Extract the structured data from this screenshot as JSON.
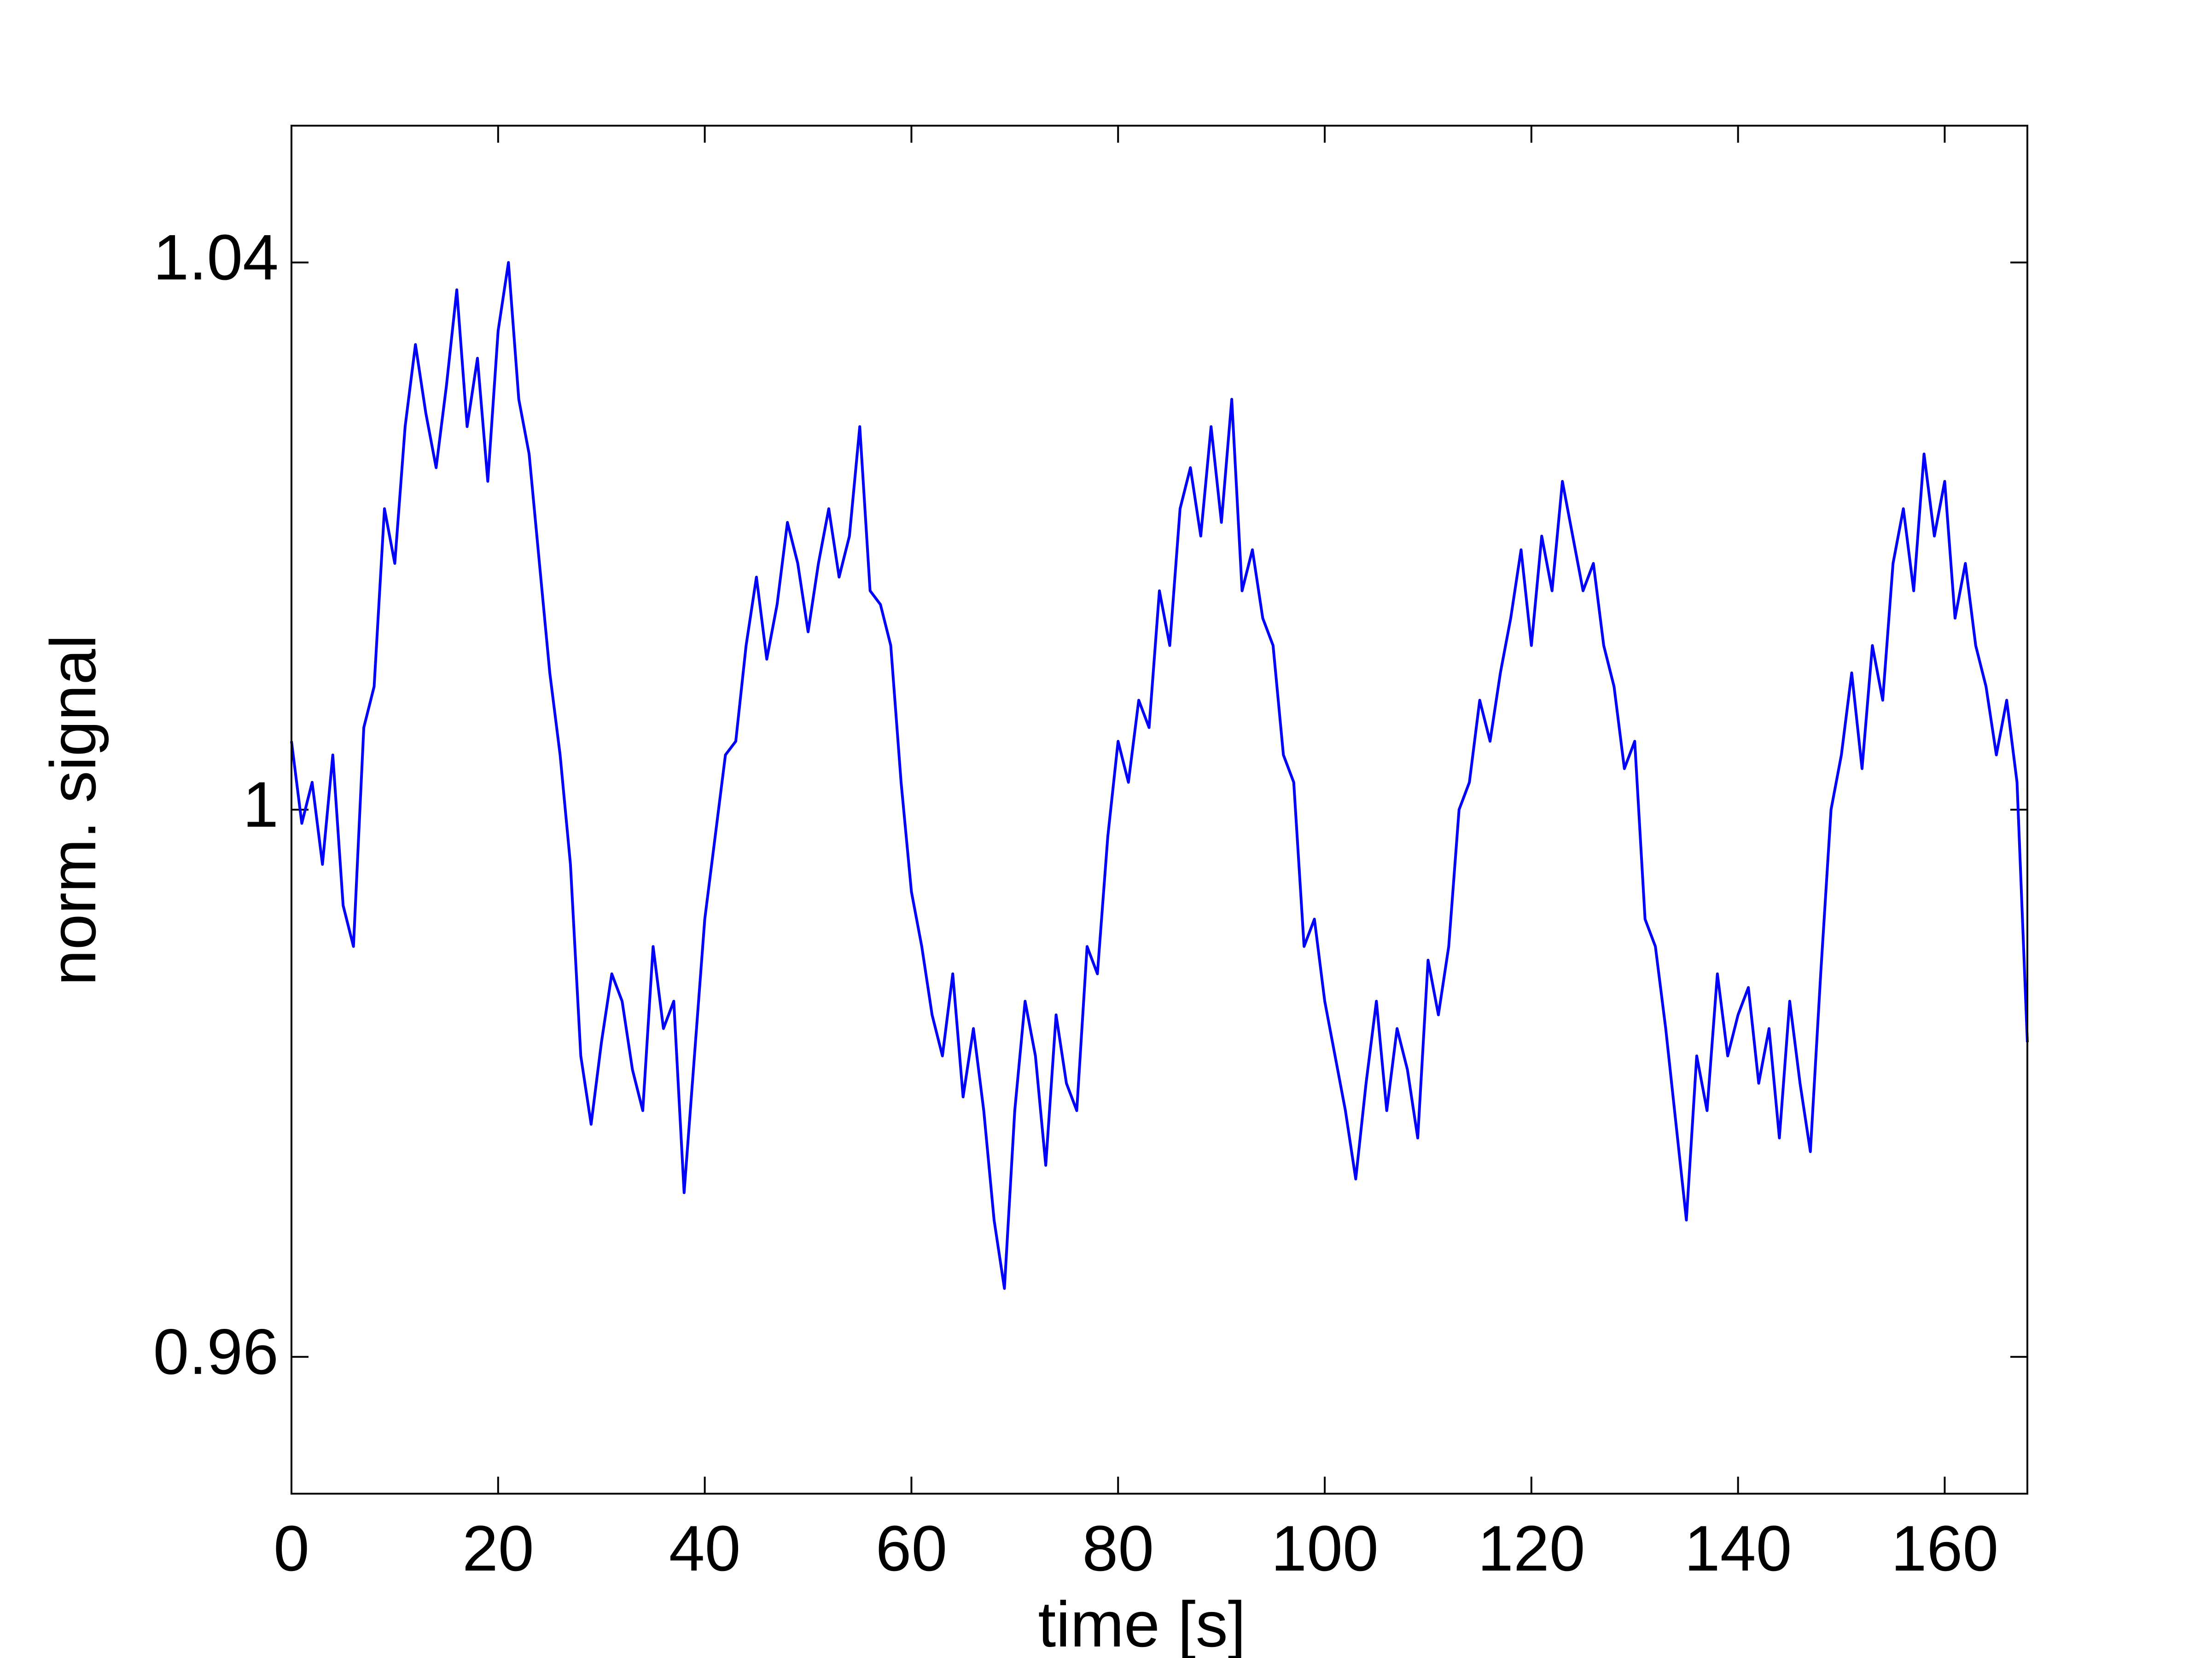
{
  "chart_data": {
    "type": "line",
    "xlabel": "time [s]",
    "ylabel": "norm. signal",
    "xlim": [
      0,
      168
    ],
    "ylim": [
      0.95,
      1.05
    ],
    "xticks": [
      0,
      20,
      40,
      60,
      80,
      100,
      120,
      140,
      160
    ],
    "yticks": [
      0.96,
      1,
      1.04
    ],
    "x": [
      0,
      1,
      2,
      3,
      4,
      5,
      6,
      7,
      8,
      9,
      10,
      11,
      12,
      13,
      14,
      15,
      16,
      17,
      18,
      19,
      20,
      21,
      22,
      23,
      24,
      25,
      26,
      27,
      28,
      29,
      30,
      31,
      32,
      33,
      34,
      35,
      36,
      37,
      38,
      39,
      40,
      41,
      42,
      43,
      44,
      45,
      46,
      47,
      48,
      49,
      50,
      51,
      52,
      53,
      54,
      55,
      56,
      57,
      58,
      59,
      60,
      61,
      62,
      63,
      64,
      65,
      66,
      67,
      68,
      69,
      70,
      71,
      72,
      73,
      74,
      75,
      76,
      77,
      78,
      79,
      80,
      81,
      82,
      83,
      84,
      85,
      86,
      87,
      88,
      89,
      90,
      91,
      92,
      93,
      94,
      95,
      96,
      97,
      98,
      99,
      100,
      101,
      102,
      103,
      104,
      105,
      106,
      107,
      108,
      109,
      110,
      111,
      112,
      113,
      114,
      115,
      116,
      117,
      118,
      119,
      120,
      121,
      122,
      123,
      124,
      125,
      126,
      127,
      128,
      129,
      130,
      131,
      132,
      133,
      134,
      135,
      136,
      137,
      138,
      139,
      140,
      141,
      142,
      143,
      144,
      145,
      146,
      147,
      148,
      149,
      150,
      151,
      152,
      153,
      154,
      155,
      156,
      157,
      158,
      159,
      160,
      161,
      162,
      163,
      164,
      165,
      166,
      167,
      168
    ],
    "series": [
      {
        "name": "signal",
        "color": "#0000ff",
        "values": [
          1.005,
          0.999,
          1.002,
          0.996,
          1.004,
          0.993,
          0.99,
          1.006,
          1.009,
          1.022,
          1.018,
          1.028,
          1.034,
          1.029,
          1.025,
          1.031,
          1.038,
          1.028,
          1.033,
          1.024,
          1.035,
          1.04,
          1.03,
          1.026,
          1.018,
          1.01,
          1.004,
          0.996,
          0.982,
          0.977,
          0.983,
          0.988,
          0.986,
          0.981,
          0.978,
          0.99,
          0.984,
          0.986,
          0.972,
          0.982,
          0.992,
          0.998,
          1.004,
          1.005,
          1.012,
          1.017,
          1.011,
          1.015,
          1.021,
          1.018,
          1.013,
          1.018,
          1.022,
          1.017,
          1.02,
          1.028,
          1.016,
          1.015,
          1.012,
          1.002,
          0.994,
          0.99,
          0.985,
          0.982,
          0.988,
          0.979,
          0.984,
          0.978,
          0.97,
          0.965,
          0.978,
          0.986,
          0.982,
          0.974,
          0.985,
          0.98,
          0.978,
          0.99,
          0.988,
          0.998,
          1.005,
          1.002,
          1.008,
          1.006,
          1.016,
          1.012,
          1.022,
          1.025,
          1.02,
          1.028,
          1.021,
          1.03,
          1.016,
          1.019,
          1.014,
          1.012,
          1.004,
          1.002,
          0.99,
          0.992,
          0.986,
          0.982,
          0.978,
          0.973,
          0.98,
          0.986,
          0.978,
          0.984,
          0.981,
          0.976,
          0.989,
          0.985,
          0.99,
          1.0,
          1.002,
          1.008,
          1.005,
          1.01,
          1.014,
          1.019,
          1.012,
          1.02,
          1.016,
          1.024,
          1.02,
          1.016,
          1.018,
          1.012,
          1.009,
          1.003,
          1.005,
          0.992,
          0.99,
          0.984,
          0.977,
          0.97,
          0.982,
          0.978,
          0.988,
          0.982,
          0.985,
          0.987,
          0.98,
          0.984,
          0.976,
          0.986,
          0.98,
          0.975,
          0.988,
          1.0,
          1.004,
          1.01,
          1.003,
          1.012,
          1.008,
          1.018,
          1.022,
          1.016,
          1.026,
          1.02,
          1.024,
          1.014,
          1.018,
          1.012,
          1.009,
          1.004,
          1.008,
          1.002,
          0.983
        ]
      }
    ]
  }
}
